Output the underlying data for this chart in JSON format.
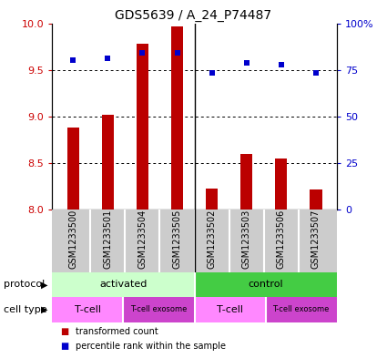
{
  "title": "GDS5639 / A_24_P74487",
  "samples": [
    "GSM1233500",
    "GSM1233501",
    "GSM1233504",
    "GSM1233505",
    "GSM1233502",
    "GSM1233503",
    "GSM1233506",
    "GSM1233507"
  ],
  "bar_values": [
    8.88,
    9.02,
    9.78,
    9.97,
    8.22,
    8.6,
    8.55,
    8.21
  ],
  "percentile_values": [
    9.6,
    9.62,
    9.68,
    9.68,
    9.47,
    9.57,
    9.56,
    9.47
  ],
  "bar_bottom": 8.0,
  "ylim_left": [
    8.0,
    10.0
  ],
  "ylim_right": [
    0,
    100
  ],
  "yticks_left": [
    8.0,
    8.5,
    9.0,
    9.5,
    10.0
  ],
  "yticks_right": [
    0,
    25,
    50,
    75,
    100
  ],
  "bar_color": "#bb0000",
  "dot_color": "#0000cc",
  "tick_color_left": "#cc0000",
  "tick_color_right": "#0000cc",
  "protocol_activated_color": "#ccffcc",
  "protocol_control_color": "#44cc44",
  "cell_tcell_color": "#ff88ff",
  "cell_exosome_color": "#cc44cc",
  "sample_bg_color": "#cccccc",
  "sample_divider_color": "#ffffff",
  "grid_color": "#000000",
  "title_fontsize": 10,
  "label_fontsize": 8,
  "tick_fontsize": 8,
  "legend_fontsize": 8,
  "sample_fontsize": 7,
  "protocol_label": "protocol",
  "cell_type_label": "cell type",
  "legend_red_label": "transformed count",
  "legend_blue_label": "percentile rank within the sample"
}
